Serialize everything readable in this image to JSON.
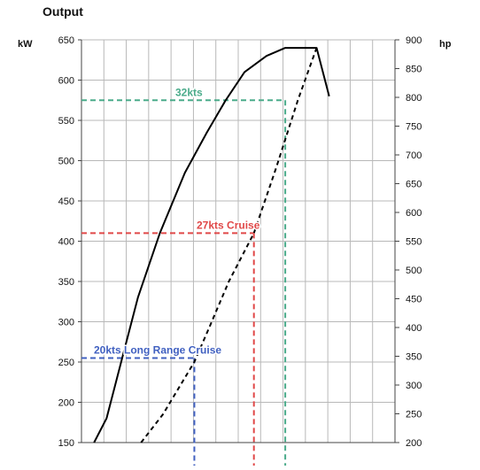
{
  "chart_data": {
    "type": "line",
    "title": "Output",
    "y_left": {
      "label": "kW",
      "min": 150,
      "max": 650,
      "step": 50,
      "ticks": [
        "150",
        "200",
        "250",
        "300",
        "350",
        "400",
        "450",
        "500",
        "550",
        "600",
        "650"
      ]
    },
    "y_right": {
      "label": "hp",
      "min": 200,
      "max": 900,
      "step": 50,
      "ticks": [
        "200",
        "250",
        "300",
        "350",
        "400",
        "450",
        "500",
        "550",
        "600",
        "650",
        "700",
        "750",
        "800",
        "850",
        "900"
      ]
    },
    "x": {
      "label": "",
      "ticks": [],
      "min": 0,
      "max": 100,
      "vertical_gridlines": 14
    },
    "grid": true,
    "series": [
      {
        "name": "",
        "style": "solid",
        "color": "#000000",
        "x": [
          4,
          8,
          13,
          18,
          25,
          33,
          40,
          46,
          52,
          59,
          65,
          71,
          75,
          79
        ],
        "y": [
          150,
          180,
          255,
          330,
          410,
          485,
          535,
          575,
          610,
          630,
          640,
          640,
          640,
          580
        ]
      },
      {
        "name": "",
        "style": "dashed",
        "color": "#000000",
        "x": [
          19,
          26,
          36,
          41,
          47,
          55,
          62,
          69,
          75
        ],
        "y": [
          150,
          185,
          250,
          295,
          350,
          410,
          490,
          575,
          640
        ]
      }
    ],
    "annotations": [
      {
        "text": "32kts",
        "color": "#4aab8a",
        "y": 575,
        "x": 65
      },
      {
        "text": "27kts Cruise",
        "color": "#e04848",
        "y": 410,
        "x": 55
      },
      {
        "text": "20kts Long Range Cruise",
        "color": "#4060c0",
        "y": 255,
        "x": 36
      }
    ]
  }
}
